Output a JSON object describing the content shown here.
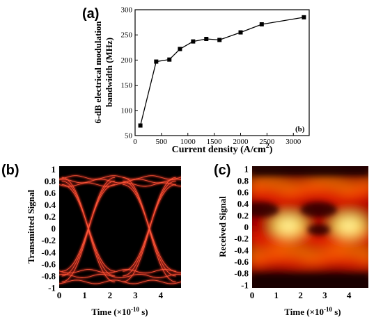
{
  "panel_labels": {
    "a": "(a)",
    "b": "(b)",
    "c": "(c)"
  },
  "chart_data": [
    {
      "id": "a",
      "type": "line",
      "xlabel": "Current density (A/cm",
      "xlabel_sup": "2",
      "xlabel_close": ")",
      "ylabel_line1": "6-dB electrical modulation",
      "ylabel_line2": "bandwidth (MHz)",
      "inset_label": "(b)",
      "xlim": [
        0,
        3300
      ],
      "ylim": [
        50,
        300
      ],
      "x_ticks": [
        0,
        500,
        1000,
        1500,
        2000,
        2500,
        3000
      ],
      "y_ticks": [
        50,
        100,
        150,
        200,
        250,
        300
      ],
      "grid": false,
      "x": [
        100,
        400,
        650,
        850,
        1100,
        1350,
        1600,
        2000,
        2400,
        3200
      ],
      "y": [
        70,
        197,
        201,
        222,
        237,
        242,
        240,
        255,
        271,
        285
      ],
      "marker": "square",
      "color": "#000000"
    },
    {
      "id": "b",
      "type": "eye-diagram",
      "xlabel": "Time (×10",
      "xlabel_sup": "-10",
      "xlabel_close": " s)",
      "ylabel": "Transmitted Signal",
      "xlim": [
        0,
        4.8
      ],
      "ylim": [
        -1,
        1.05
      ],
      "x_ticks": [
        "0",
        "1",
        "2",
        "3",
        "4"
      ],
      "y_ticks": [
        "1",
        "0.8",
        "0.6",
        "0.4",
        "0.2",
        "0",
        "-0.2",
        "-0.4",
        "-0.6",
        "-0.8",
        "-1"
      ],
      "background": "#000000",
      "trace_color": "#e8321e",
      "levels_high": [
        0.74,
        0.8,
        0.86
      ],
      "levels_low": [
        -0.72,
        -0.8,
        -0.9
      ],
      "crossings": [
        1.15,
        3.55
      ],
      "tops": [
        2.35
      ]
    },
    {
      "id": "c",
      "type": "eye-diagram-density",
      "xlabel": "Time (×10",
      "xlabel_sup": "-10",
      "xlabel_close": " s)",
      "ylabel": "Received Signal",
      "xlim": [
        0,
        4.8
      ],
      "ylim": [
        -1.05,
        1.05
      ],
      "x_ticks": [
        "0",
        "1",
        "2",
        "3",
        "4"
      ],
      "y_ticks": [
        "1",
        "0.8",
        "0.6",
        "0.4",
        "0.2",
        "0",
        "-0.2",
        "-0.4",
        "-0.6",
        "-0.8",
        "-1"
      ],
      "palette": [
        "#1a0000",
        "#b00000",
        "#ff2a00",
        "#ff8c00",
        "#ffe14a"
      ],
      "crossings": [
        1.5,
        4.0
      ]
    }
  ]
}
